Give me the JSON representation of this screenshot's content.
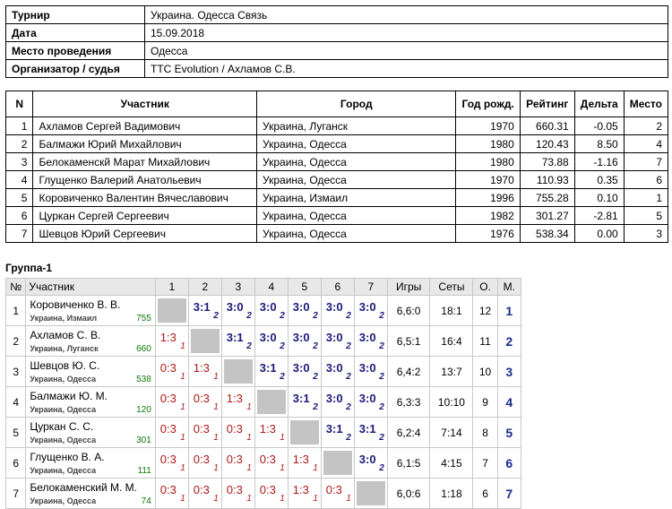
{
  "info": {
    "rows": [
      [
        "Турнир",
        "Украина. Одесса Связь"
      ],
      [
        "Дата",
        "15.09.2018"
      ],
      [
        "Место проведения",
        "Одесса"
      ],
      [
        "Организатор / судья",
        "TTC Evolution / Ахламов С.В."
      ]
    ]
  },
  "participants": {
    "header": [
      "N",
      "Участник",
      "Город",
      "Год рожд.",
      "Рейтинг",
      "Дельта",
      "Место"
    ],
    "rows": [
      [
        "1",
        "Ахламов Сергей Вадимович",
        "Украина, Луганск",
        "1970",
        "660.31",
        "-0.05",
        "2"
      ],
      [
        "2",
        "Балмажи Юрий Михайлович",
        "Украина, Одесса",
        "1980",
        "120.43",
        "8.50",
        "4"
      ],
      [
        "3",
        "Белокаменскй Марат Михайлович",
        "Украина, Одесса",
        "1980",
        "73.88",
        "-1.16",
        "7"
      ],
      [
        "4",
        "Глущенко Валерий Анатольевич",
        "Украина, Одесса",
        "1970",
        "110.93",
        "0.35",
        "6"
      ],
      [
        "5",
        "Коровиченко Валентин Вячеславович",
        "Украина, Измаил",
        "1996",
        "755.28",
        "0.10",
        "1"
      ],
      [
        "6",
        "Цуркан Сергей Сергеевич",
        "Украина, Одесса",
        "1982",
        "301.27",
        "-2.81",
        "5"
      ],
      [
        "7",
        "Шевцов Юрий Сергеевич",
        "Украина, Одесса",
        "1976",
        "538.34",
        "0.00",
        "3"
      ]
    ]
  },
  "group": {
    "title": "Группа-1",
    "header": [
      "№",
      "Участник",
      "1",
      "2",
      "3",
      "4",
      "5",
      "6",
      "7",
      "Игры",
      "Сеты",
      "О.",
      "М."
    ],
    "rows": [
      {
        "n": "1",
        "name": "Коровиченко В. В.",
        "city": "Украина, Измаил",
        "rating": "755",
        "results": [
          null,
          {
            "score": "3:1",
            "pts": "2"
          },
          {
            "score": "3:0",
            "pts": "2"
          },
          {
            "score": "3:0",
            "pts": "2"
          },
          {
            "score": "3:0",
            "pts": "2"
          },
          {
            "score": "3:0",
            "pts": "2"
          },
          {
            "score": "3:0",
            "pts": "2"
          }
        ],
        "games": "6,6:0",
        "sets": "18:1",
        "points": "12",
        "place": "1"
      },
      {
        "n": "2",
        "name": "Ахламов С. В.",
        "city": "Украина, Луганск",
        "rating": "660",
        "results": [
          {
            "score": "1:3",
            "pts": "1"
          },
          null,
          {
            "score": "3:1",
            "pts": "2"
          },
          {
            "score": "3:0",
            "pts": "2"
          },
          {
            "score": "3:0",
            "pts": "2"
          },
          {
            "score": "3:0",
            "pts": "2"
          },
          {
            "score": "3:0",
            "pts": "2"
          }
        ],
        "games": "6,5:1",
        "sets": "16:4",
        "points": "11",
        "place": "2"
      },
      {
        "n": "3",
        "name": "Шевцов Ю. С.",
        "city": "Украина, Одесса",
        "rating": "538",
        "results": [
          {
            "score": "0:3",
            "pts": "1"
          },
          {
            "score": "1:3",
            "pts": "1"
          },
          null,
          {
            "score": "3:1",
            "pts": "2"
          },
          {
            "score": "3:0",
            "pts": "2"
          },
          {
            "score": "3:0",
            "pts": "2"
          },
          {
            "score": "3:0",
            "pts": "2"
          }
        ],
        "games": "6,4:2",
        "sets": "13:7",
        "points": "10",
        "place": "3"
      },
      {
        "n": "4",
        "name": "Балмажи Ю. М.",
        "city": "Украина, Одесса",
        "rating": "120",
        "results": [
          {
            "score": "0:3",
            "pts": "1"
          },
          {
            "score": "0:3",
            "pts": "1"
          },
          {
            "score": "1:3",
            "pts": "1"
          },
          null,
          {
            "score": "3:1",
            "pts": "2"
          },
          {
            "score": "3:0",
            "pts": "2"
          },
          {
            "score": "3:0",
            "pts": "2"
          }
        ],
        "games": "6,3:3",
        "sets": "10:10",
        "points": "9",
        "place": "4"
      },
      {
        "n": "5",
        "name": "Цуркан С. С.",
        "city": "Украина, Одесса",
        "rating": "301",
        "results": [
          {
            "score": "0:3",
            "pts": "1"
          },
          {
            "score": "0:3",
            "pts": "1"
          },
          {
            "score": "0:3",
            "pts": "1"
          },
          {
            "score": "1:3",
            "pts": "1"
          },
          null,
          {
            "score": "3:1",
            "pts": "2"
          },
          {
            "score": "3:1",
            "pts": "2"
          }
        ],
        "games": "6,2:4",
        "sets": "7:14",
        "points": "8",
        "place": "5"
      },
      {
        "n": "6",
        "name": "Глущенко В. А.",
        "city": "Украина, Одесса",
        "rating": "111",
        "results": [
          {
            "score": "0:3",
            "pts": "1"
          },
          {
            "score": "0:3",
            "pts": "1"
          },
          {
            "score": "0:3",
            "pts": "1"
          },
          {
            "score": "0:3",
            "pts": "1"
          },
          {
            "score": "1:3",
            "pts": "1"
          },
          null,
          {
            "score": "3:0",
            "pts": "2"
          }
        ],
        "games": "6,1:5",
        "sets": "4:15",
        "points": "7",
        "place": "6"
      },
      {
        "n": "7",
        "name": "Белокаменский М. М.",
        "city": "Украина, Одесса",
        "rating": "74",
        "results": [
          {
            "score": "0:3",
            "pts": "1"
          },
          {
            "score": "0:3",
            "pts": "1"
          },
          {
            "score": "0:3",
            "pts": "1"
          },
          {
            "score": "0:3",
            "pts": "1"
          },
          {
            "score": "1:3",
            "pts": "1"
          },
          {
            "score": "0:3",
            "pts": "1"
          },
          null
        ],
        "games": "6,0:6",
        "sets": "1:18",
        "points": "6",
        "place": "7"
      }
    ]
  }
}
